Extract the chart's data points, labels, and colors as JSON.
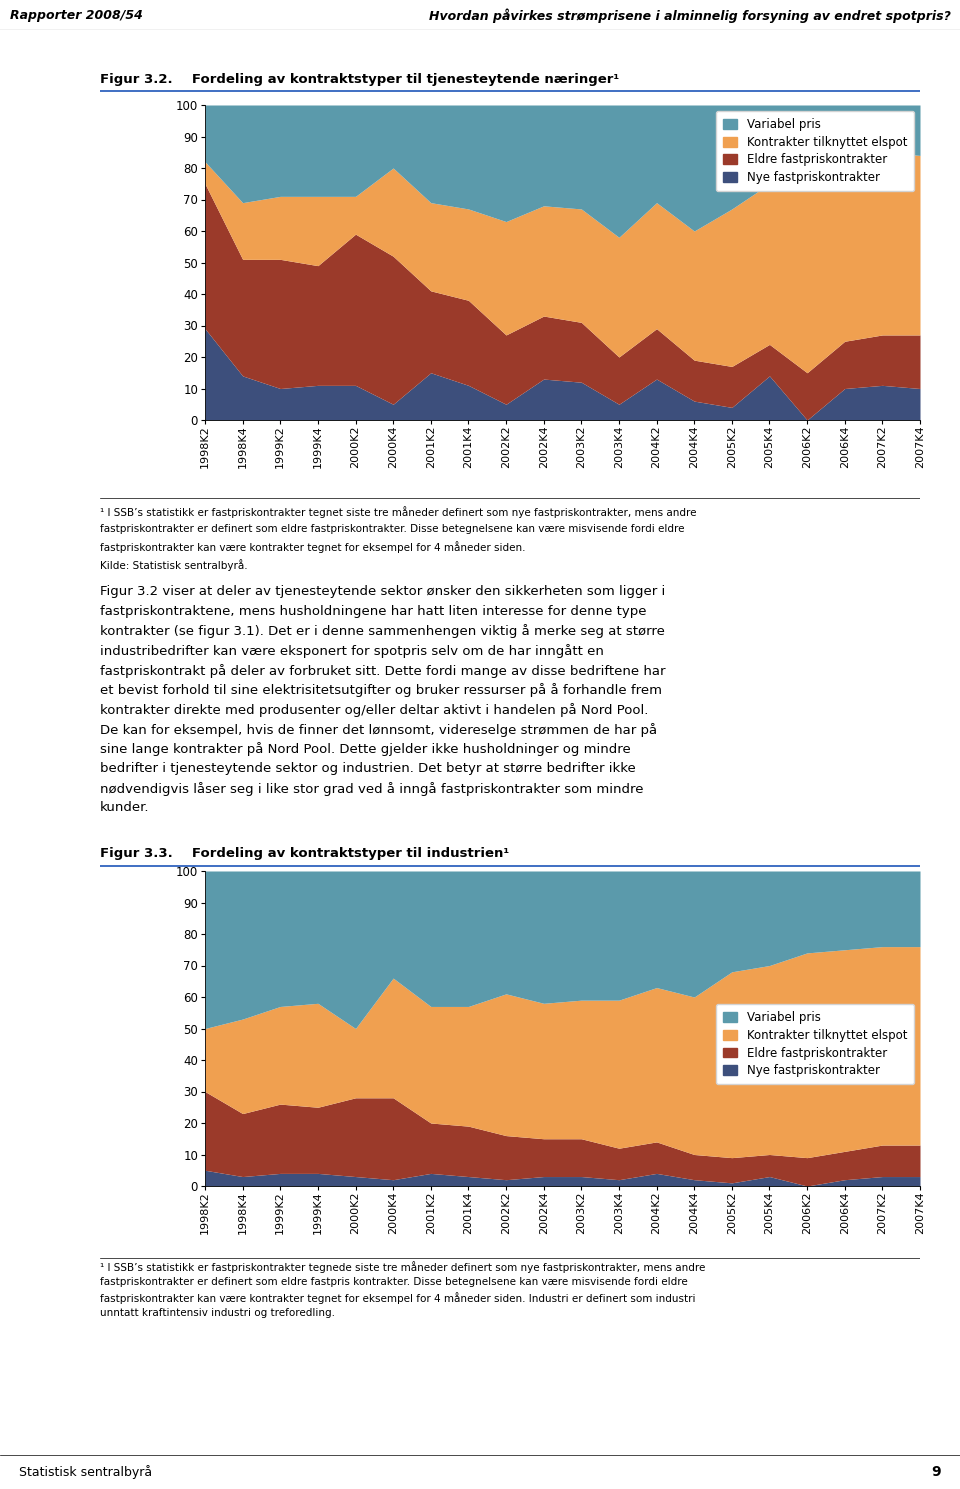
{
  "header_left": "Rapporter 2008/54",
  "header_right": "Hvordan påvirkes strømprisene i alminnelig forsyning av endret spotpris?",
  "fig1_title_bold": "Figur 3.2.",
  "fig1_title_rest": "   Fordeling av kontraktstyper til tjenesteytende næringer¹",
  "fig2_title_bold": "Figur 3.3.",
  "fig2_title_rest": "   Fordeling av kontraktstyper til industrien¹",
  "x_labels": [
    "1998K2",
    "1998K4",
    "1999K2",
    "1999K4",
    "2000K2",
    "2000K4",
    "2001K2",
    "2001K4",
    "2002K2",
    "2002K4",
    "2003K2",
    "2003K4",
    "2004K2",
    "2004K4",
    "2005K2",
    "2005K4",
    "2006K2",
    "2006K4",
    "2007K2",
    "2007K4"
  ],
  "legend_labels": [
    "Variabel pris",
    "Kontrakter tilknyttet elspot",
    "Eldre fastpriskontrakter",
    "Nye fastpriskontrakter"
  ],
  "colors": [
    "#5b9aab",
    "#f0a050",
    "#9b3a2a",
    "#3d4f7c"
  ],
  "fig1_data": {
    "nye": [
      29,
      14,
      10,
      11,
      11,
      5,
      15,
      11,
      5,
      13,
      12,
      5,
      13,
      6,
      4,
      14,
      0,
      10,
      11,
      10
    ],
    "eldre": [
      46,
      37,
      41,
      38,
      48,
      47,
      26,
      27,
      22,
      20,
      19,
      15,
      16,
      13,
      13,
      10,
      15,
      15,
      16,
      17
    ],
    "elspot": [
      7,
      18,
      20,
      22,
      12,
      28,
      28,
      29,
      36,
      35,
      36,
      38,
      40,
      41,
      50,
      51,
      58,
      57,
      58,
      57
    ],
    "variabel": [
      18,
      31,
      29,
      29,
      29,
      20,
      31,
      33,
      37,
      32,
      33,
      42,
      31,
      40,
      33,
      25,
      27,
      18,
      15,
      16
    ]
  },
  "fig2_data": {
    "nye": [
      5,
      3,
      4,
      4,
      3,
      2,
      4,
      3,
      2,
      3,
      3,
      2,
      4,
      2,
      1,
      3,
      0,
      2,
      3,
      3
    ],
    "eldre": [
      25,
      20,
      22,
      21,
      25,
      26,
      16,
      16,
      14,
      12,
      12,
      10,
      10,
      8,
      8,
      7,
      9,
      9,
      10,
      10
    ],
    "elspot": [
      20,
      30,
      31,
      33,
      22,
      38,
      37,
      38,
      45,
      43,
      44,
      47,
      49,
      50,
      59,
      60,
      65,
      64,
      63,
      63
    ],
    "variabel": [
      50,
      47,
      43,
      42,
      50,
      34,
      43,
      43,
      39,
      42,
      41,
      41,
      37,
      40,
      32,
      30,
      26,
      25,
      24,
      24
    ]
  },
  "footer1_lines": [
    "¹ I SSB’s statistikk er fastpriskontrakter tegnet siste tre måneder definert som nye fastpriskontrakter, mens andre",
    "fastpriskontrakter er definert som eldre fastpriskontrakter. Disse betegnelsene kan være misvisende fordi eldre",
    "fastpriskontrakter kan være kontrakter tegnet for eksempel for 4 måneder siden.",
    "Kilde: Statistisk sentralbyrå."
  ],
  "body_text_lines": [
    "Figur 3.2 viser at deler av tjenesteytende sektor ønsker den sikkerheten som ligger i",
    "fastpriskontraktene, mens husholdningene har hatt liten interesse for denne type",
    "kontrakter (se figur 3.1). Det er i denne sammenhengen viktig å merke seg at større",
    "industribedrifter kan være eksponert for spotpris selv om de har inngått en",
    "fastpriskontrakt på deler av forbruket sitt. Dette fordi mange av disse bedriftene har",
    "et bevist forhold til sine elektrisitetsutgifter og bruker ressurser på å forhandle frem",
    "kontrakter direkte med produsenter og/eller deltar aktivt i handelen på Nord Pool.",
    "De kan for eksempel, hvis de finner det lønnsomt, videreselge strømmen de har på",
    "sine lange kontrakter på Nord Pool. Dette gjelder ikke husholdninger og mindre",
    "bedrifter i tjenesteytende sektor og industrien. Det betyr at større bedrifter ikke",
    "nødvendigvis låser seg i like stor grad ved å inngå fastpriskontrakter som mindre",
    "kunder."
  ],
  "footer2_lines": [
    "¹ I SSB’s statistikk er fastpriskontrakter tegnede siste tre måneder definert som nye fastpriskontrakter, mens andre",
    "fastpriskontrakter er definert som eldre fastpris kontrakter. Disse betegnelsene kan være misvisende fordi eldre",
    "fastpriskontrakter kan være kontrakter tegnet for eksempel for 4 måneder siden. Industri er definert som industri",
    "unntatt kraftintensiv industri og treforedling."
  ],
  "footer_line_color": "#4472c4",
  "page_number": "9",
  "source_left": "Statistisk sentralbyrå",
  "yticks": [
    0,
    10,
    20,
    30,
    40,
    50,
    60,
    70,
    80,
    90,
    100
  ]
}
